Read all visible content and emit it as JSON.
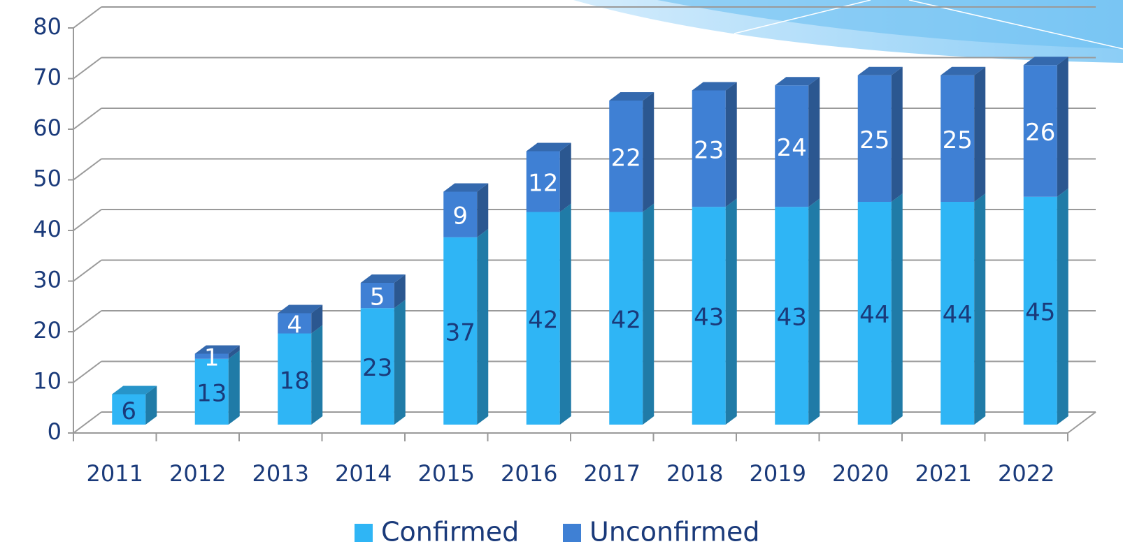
{
  "chart_data": {
    "type": "bar",
    "stacked": true,
    "three_d": true,
    "categories": [
      "2011",
      "2012",
      "2013",
      "2014",
      "2015",
      "2016",
      "2017",
      "2018",
      "2019",
      "2020",
      "2021",
      "2022"
    ],
    "series": [
      {
        "name": "Confirmed",
        "color": "#2fb5f5",
        "values": [
          6,
          13,
          18,
          23,
          37,
          42,
          42,
          43,
          43,
          44,
          44,
          45
        ]
      },
      {
        "name": "Unconfirmed",
        "color": "#3f80d4",
        "values": [
          null,
          1,
          4,
          5,
          9,
          12,
          22,
          23,
          24,
          25,
          25,
          26
        ]
      }
    ],
    "ylim": [
      0,
      80
    ],
    "yticks": [
      0,
      10,
      20,
      30,
      40,
      50,
      60,
      70,
      80
    ],
    "grid": true,
    "legend": "bottom"
  }
}
